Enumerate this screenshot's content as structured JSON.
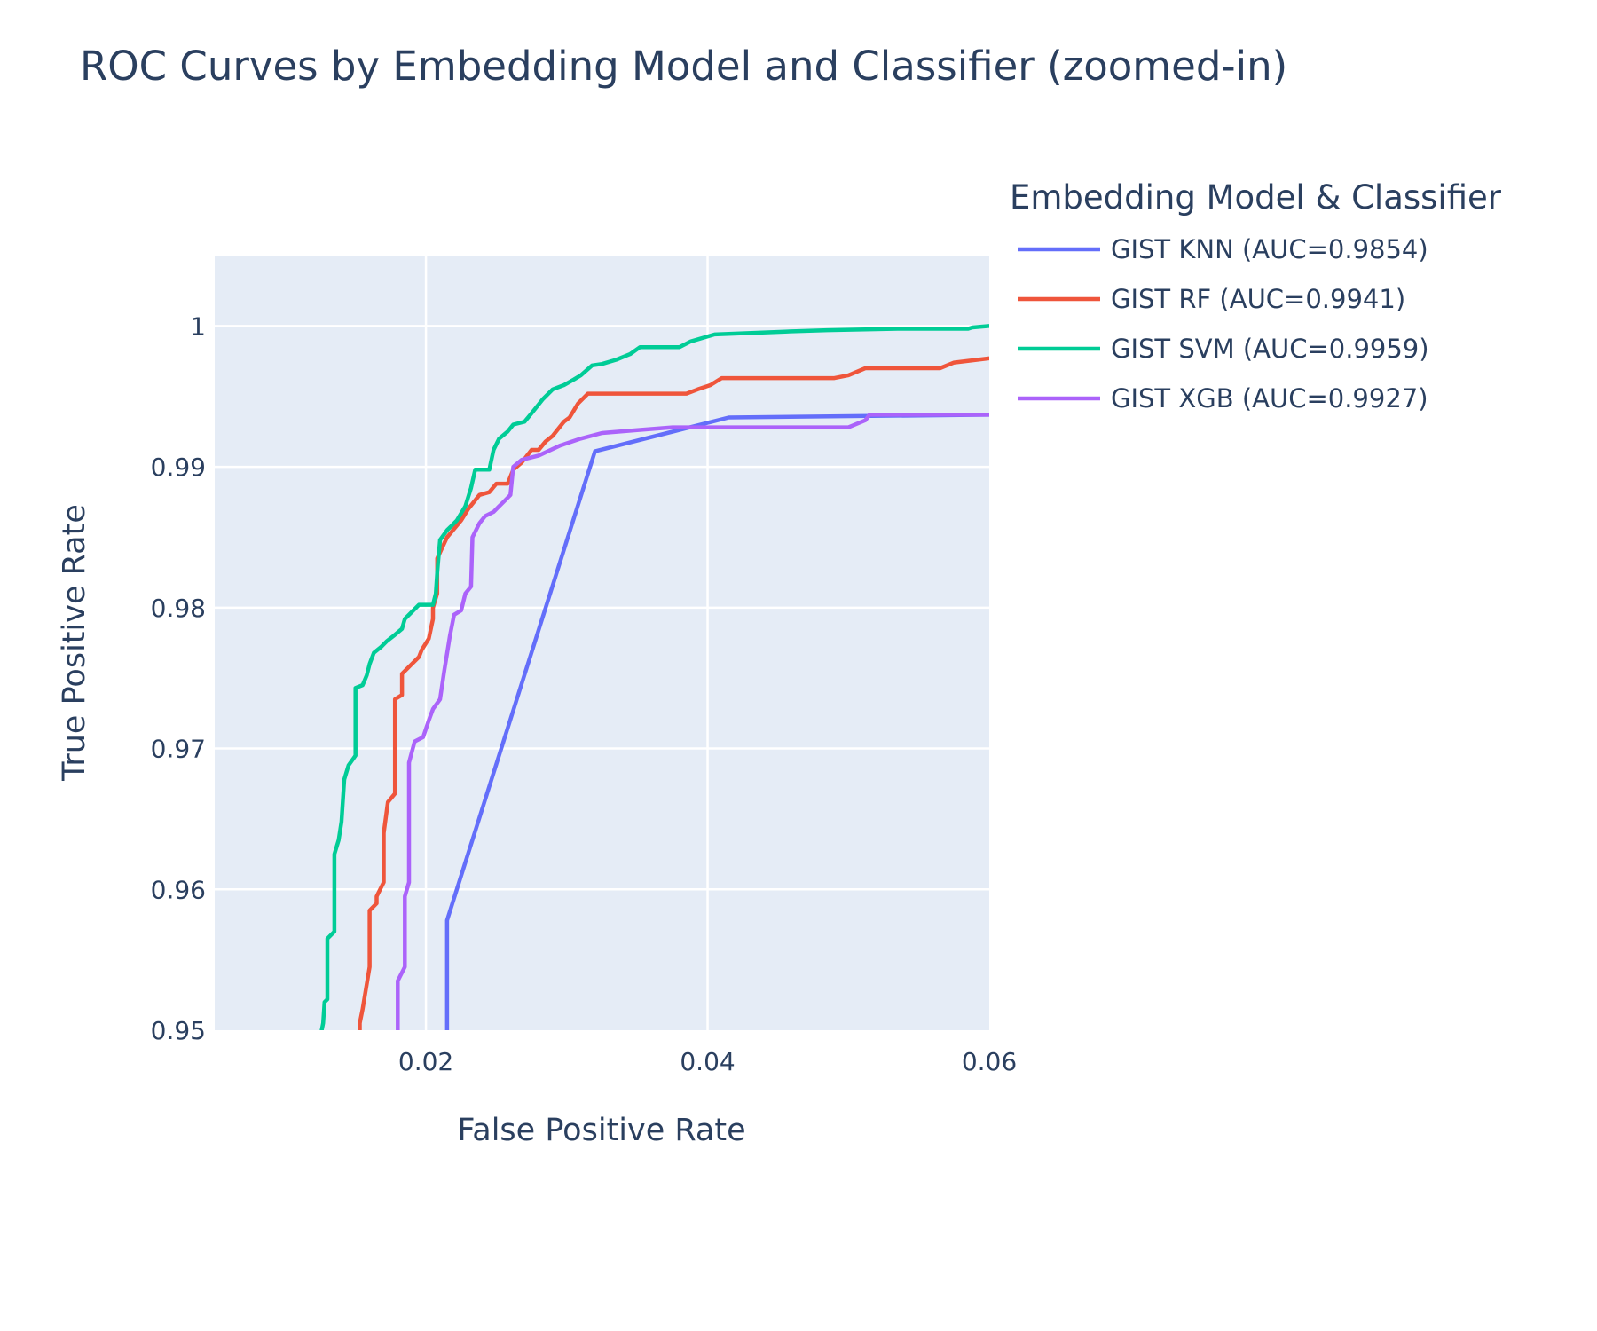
{
  "chart_data": {
    "type": "line",
    "title": "ROC Curves by Embedding Model and Classifier (zoomed-in)",
    "xlabel": "False Positive Rate",
    "ylabel": "True Positive Rate",
    "xlim": [
      0.005,
      0.06
    ],
    "ylim": [
      0.95,
      1.005
    ],
    "x_ticks": [
      {
        "value": 0.02,
        "label": "0.02"
      },
      {
        "value": 0.04,
        "label": "0.04"
      },
      {
        "value": 0.06,
        "label": "0.06"
      }
    ],
    "y_ticks": [
      {
        "value": 0.95,
        "label": "0.95"
      },
      {
        "value": 0.96,
        "label": "0.96"
      },
      {
        "value": 0.97,
        "label": "0.97"
      },
      {
        "value": 0.98,
        "label": "0.98"
      },
      {
        "value": 0.99,
        "label": "0.99"
      },
      {
        "value": 1.0,
        "label": "1"
      }
    ],
    "grid": true,
    "background": "#e5ecf6",
    "legend": {
      "title": "Embedding Model & Classifier",
      "placement": "right"
    },
    "series": [
      {
        "name": "GIST KNN (AUC=0.9854)",
        "color": "#636efa",
        "points": [
          [
            0.0215,
            0.948
          ],
          [
            0.0215,
            0.9578
          ],
          [
            0.032,
            0.9911
          ],
          [
            0.0415,
            0.9935
          ],
          [
            0.06,
            0.9937
          ]
        ]
      },
      {
        "name": "GIST RF (AUC=0.9941)",
        "color": "#ef553b",
        "points": [
          [
            0.0153,
            0.9485
          ],
          [
            0.0153,
            0.9505
          ],
          [
            0.0155,
            0.9515
          ],
          [
            0.016,
            0.9545
          ],
          [
            0.016,
            0.9585
          ],
          [
            0.0165,
            0.959
          ],
          [
            0.0165,
            0.9595
          ],
          [
            0.017,
            0.9605
          ],
          [
            0.017,
            0.964
          ],
          [
            0.0173,
            0.9662
          ],
          [
            0.0178,
            0.9668
          ],
          [
            0.0178,
            0.9735
          ],
          [
            0.0183,
            0.9738
          ],
          [
            0.0183,
            0.9753
          ],
          [
            0.019,
            0.976
          ],
          [
            0.0195,
            0.9765
          ],
          [
            0.0197,
            0.977
          ],
          [
            0.0202,
            0.9778
          ],
          [
            0.0205,
            0.9792
          ],
          [
            0.0205,
            0.98
          ],
          [
            0.0208,
            0.981
          ],
          [
            0.0208,
            0.9835
          ],
          [
            0.0215,
            0.985
          ],
          [
            0.0225,
            0.9862
          ],
          [
            0.023,
            0.987
          ],
          [
            0.0238,
            0.988
          ],
          [
            0.0245,
            0.9882
          ],
          [
            0.025,
            0.9888
          ],
          [
            0.0258,
            0.9888
          ],
          [
            0.0262,
            0.9898
          ],
          [
            0.0268,
            0.9903
          ],
          [
            0.0275,
            0.9912
          ],
          [
            0.028,
            0.9912
          ],
          [
            0.0285,
            0.9918
          ],
          [
            0.029,
            0.9922
          ],
          [
            0.0298,
            0.9932
          ],
          [
            0.0302,
            0.9935
          ],
          [
            0.0308,
            0.9945
          ],
          [
            0.0315,
            0.9952
          ],
          [
            0.0365,
            0.9952
          ],
          [
            0.0385,
            0.9952
          ],
          [
            0.0393,
            0.9955
          ],
          [
            0.0402,
            0.9958
          ],
          [
            0.041,
            0.9963
          ],
          [
            0.049,
            0.9963
          ],
          [
            0.05,
            0.9965
          ],
          [
            0.0512,
            0.997
          ],
          [
            0.0565,
            0.997
          ],
          [
            0.0575,
            0.9974
          ],
          [
            0.06,
            0.9977
          ]
        ]
      },
      {
        "name": "GIST SVM (AUC=0.9959)",
        "color": "#00cc96",
        "points": [
          [
            0.0125,
            0.9495
          ],
          [
            0.0127,
            0.9505
          ],
          [
            0.0128,
            0.952
          ],
          [
            0.013,
            0.9522
          ],
          [
            0.013,
            0.9565
          ],
          [
            0.0135,
            0.957
          ],
          [
            0.0135,
            0.9625
          ],
          [
            0.0138,
            0.9635
          ],
          [
            0.014,
            0.9648
          ],
          [
            0.0142,
            0.9678
          ],
          [
            0.0145,
            0.9688
          ],
          [
            0.015,
            0.9695
          ],
          [
            0.015,
            0.9743
          ],
          [
            0.0155,
            0.9745
          ],
          [
            0.0158,
            0.9752
          ],
          [
            0.016,
            0.976
          ],
          [
            0.0163,
            0.9768
          ],
          [
            0.0168,
            0.9772
          ],
          [
            0.0172,
            0.9776
          ],
          [
            0.0177,
            0.978
          ],
          [
            0.0183,
            0.9785
          ],
          [
            0.0185,
            0.9792
          ],
          [
            0.019,
            0.9797
          ],
          [
            0.0195,
            0.9802
          ],
          [
            0.0205,
            0.9802
          ],
          [
            0.0207,
            0.981
          ],
          [
            0.0208,
            0.9825
          ],
          [
            0.021,
            0.9848
          ],
          [
            0.0215,
            0.9855
          ],
          [
            0.0218,
            0.9858
          ],
          [
            0.0222,
            0.9862
          ],
          [
            0.0228,
            0.9872
          ],
          [
            0.0232,
            0.9885
          ],
          [
            0.0235,
            0.9898
          ],
          [
            0.0245,
            0.9898
          ],
          [
            0.0248,
            0.9912
          ],
          [
            0.0252,
            0.992
          ],
          [
            0.0258,
            0.9925
          ],
          [
            0.0262,
            0.993
          ],
          [
            0.027,
            0.9932
          ],
          [
            0.0275,
            0.9938
          ],
          [
            0.0283,
            0.9948
          ],
          [
            0.029,
            0.9955
          ],
          [
            0.0298,
            0.9958
          ],
          [
            0.0305,
            0.9962
          ],
          [
            0.031,
            0.9965
          ],
          [
            0.0318,
            0.9972
          ],
          [
            0.0325,
            0.9973
          ],
          [
            0.0335,
            0.9976
          ],
          [
            0.0345,
            0.998
          ],
          [
            0.0352,
            0.9985
          ],
          [
            0.038,
            0.9985
          ],
          [
            0.0388,
            0.9989
          ],
          [
            0.0398,
            0.9992
          ],
          [
            0.0405,
            0.9994
          ],
          [
            0.0455,
            0.9996
          ],
          [
            0.0485,
            0.9997
          ],
          [
            0.0535,
            0.9998
          ],
          [
            0.0585,
            0.9998
          ],
          [
            0.0588,
            0.9999
          ],
          [
            0.06,
            1.0
          ]
        ]
      },
      {
        "name": "GIST XGB (AUC=0.9927)",
        "color": "#ab63fa",
        "points": [
          [
            0.018,
            0.9485
          ],
          [
            0.018,
            0.9535
          ],
          [
            0.0185,
            0.9545
          ],
          [
            0.0185,
            0.9595
          ],
          [
            0.0188,
            0.9605
          ],
          [
            0.0188,
            0.969
          ],
          [
            0.0192,
            0.9705
          ],
          [
            0.0198,
            0.9708
          ],
          [
            0.0202,
            0.972
          ],
          [
            0.0205,
            0.9728
          ],
          [
            0.021,
            0.9735
          ],
          [
            0.0213,
            0.9755
          ],
          [
            0.0217,
            0.978
          ],
          [
            0.022,
            0.9795
          ],
          [
            0.0225,
            0.9798
          ],
          [
            0.0228,
            0.981
          ],
          [
            0.0232,
            0.9815
          ],
          [
            0.0233,
            0.985
          ],
          [
            0.0238,
            0.986
          ],
          [
            0.0242,
            0.9865
          ],
          [
            0.0248,
            0.9868
          ],
          [
            0.0252,
            0.9872
          ],
          [
            0.0255,
            0.9875
          ],
          [
            0.026,
            0.988
          ],
          [
            0.0262,
            0.99
          ],
          [
            0.0268,
            0.9905
          ],
          [
            0.028,
            0.9908
          ],
          [
            0.0295,
            0.9915
          ],
          [
            0.031,
            0.992
          ],
          [
            0.0325,
            0.9924
          ],
          [
            0.035,
            0.9926
          ],
          [
            0.0375,
            0.9928
          ],
          [
            0.05,
            0.9928
          ],
          [
            0.0512,
            0.9933
          ],
          [
            0.0515,
            0.9937
          ],
          [
            0.06,
            0.9937
          ]
        ]
      }
    ]
  }
}
